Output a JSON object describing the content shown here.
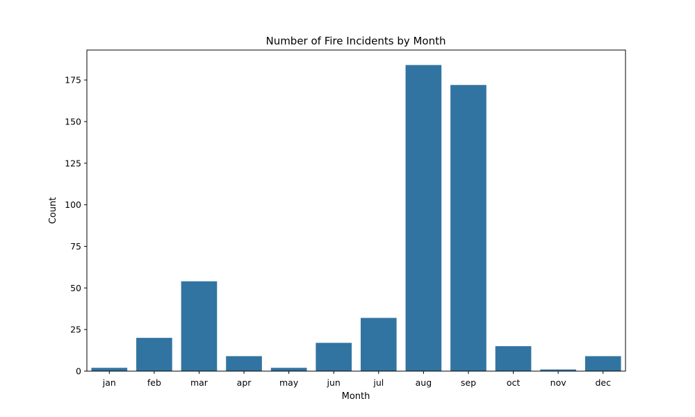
{
  "chart_data": {
    "type": "bar",
    "title": "Number of Fire Incidents by Month",
    "xlabel": "Month",
    "ylabel": "Count",
    "categories": [
      "jan",
      "feb",
      "mar",
      "apr",
      "may",
      "jun",
      "jul",
      "aug",
      "sep",
      "oct",
      "nov",
      "dec"
    ],
    "values": [
      2,
      20,
      54,
      9,
      2,
      17,
      32,
      184,
      172,
      15,
      1,
      9
    ],
    "yticks": [
      0,
      25,
      50,
      75,
      100,
      125,
      150,
      175
    ],
    "ylim": [
      0,
      193
    ],
    "grid": false,
    "legend": "none",
    "bar_color": "#3274a1"
  }
}
